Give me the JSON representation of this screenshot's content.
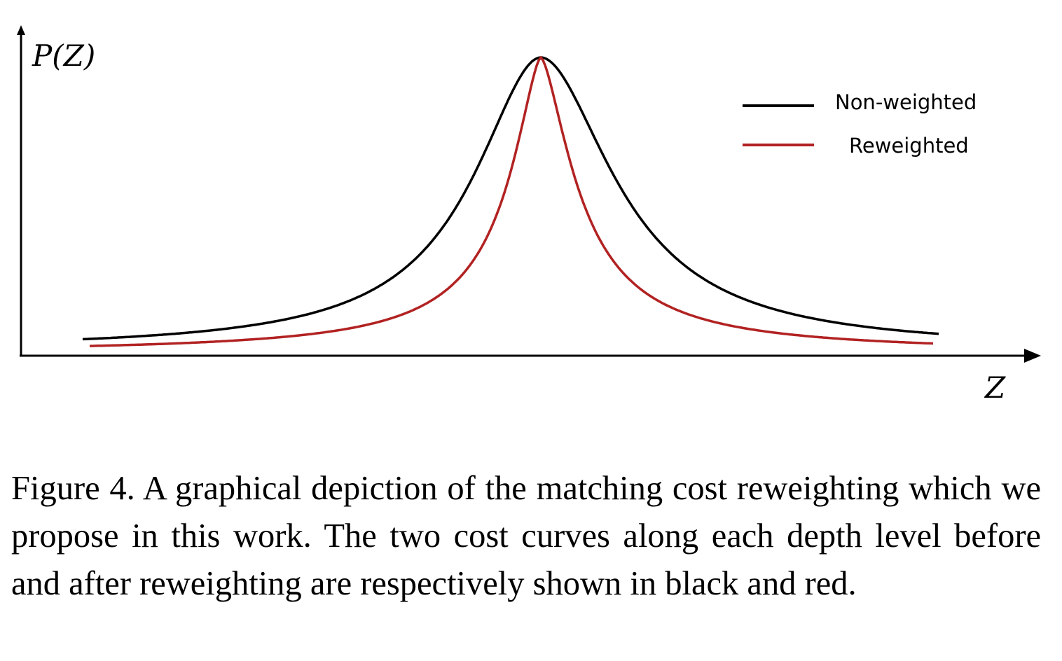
{
  "chart_data": {
    "type": "line",
    "xlabel": "Z",
    "ylabel": "P(Z)",
    "legend_position": "top-right",
    "grid": false,
    "series": [
      {
        "name": "Non-weighted",
        "color": "#000000"
      },
      {
        "name": "Reweighted",
        "color": "#b22222"
      }
    ]
  },
  "caption": {
    "text": "Figure 4. A graphical depiction of the matching cost reweighting which we propose in this work.  The two cost curves along each depth level before and after reweighting are respectively shown in black and red."
  }
}
